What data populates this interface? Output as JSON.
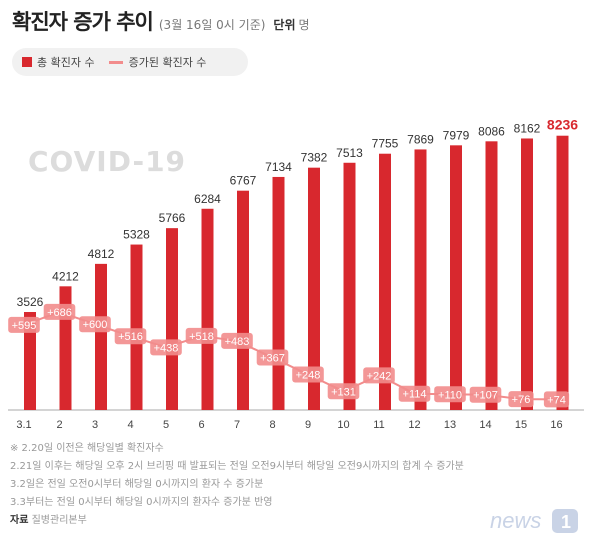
{
  "header": {
    "title": "확진자 증가 추이",
    "subtitle": "(3월 16일 0시 기준)",
    "unit_label": "단위",
    "unit_value": "명"
  },
  "legend": {
    "total": "총 확진자 수",
    "increase": "증가된 확진자 수"
  },
  "watermark": "COVID-19",
  "colors": {
    "bar": "#d8282e",
    "increase": "#f28c8c",
    "axis": "#aaaaaa"
  },
  "chart_data": {
    "type": "bar",
    "categories": [
      "3.1",
      "2",
      "3",
      "4",
      "5",
      "6",
      "7",
      "8",
      "9",
      "10",
      "11",
      "12",
      "13",
      "14",
      "15",
      "16"
    ],
    "series": [
      {
        "name": "총 확진자 수",
        "values": [
          3526,
          4212,
          4812,
          5328,
          5766,
          6284,
          6767,
          7134,
          7382,
          7513,
          7755,
          7869,
          7979,
          8086,
          8162,
          8236
        ]
      },
      {
        "name": "증가된 확진자 수",
        "values": [
          595,
          686,
          600,
          516,
          438,
          518,
          483,
          367,
          248,
          131,
          242,
          114,
          110,
          107,
          76,
          74
        ]
      }
    ],
    "value_labels": [
      "3526",
      "4212",
      "4812",
      "5328",
      "5766",
      "6284",
      "6767",
      "7134",
      "7382",
      "7513",
      "7755",
      "7869",
      "7979",
      "8086",
      "8162",
      "8236"
    ],
    "increase_labels": [
      "+595",
      "+686",
      "+600",
      "+516",
      "+438",
      "+518",
      "+483",
      "+367",
      "+248",
      "+131",
      "+242",
      "+114",
      "+110",
      "+107",
      "+76",
      "+74"
    ],
    "title": "확진자 증가 추이",
    "xlabel": "",
    "ylabel": ""
  },
  "notes": {
    "n1": "※ 2.20일 이전은 해당일별 확진자수",
    "n2": "2.21일 이후는 해당일 오후 2시 브리핑 때 발표되는 전일 오전9시부터 해당일 오전9시까지의 합계 수 증가분",
    "n3": "3.2일은 전일 오전0시부터 해당일 0시까지의 환자 수 증가분",
    "n4": "3.3부터는 전일 0시부터 해당일 0시까지의 환자수 증가분 반영",
    "source_label": "자료",
    "source_value": "질병관리본부"
  },
  "logo": {
    "text": "news",
    "number": "1"
  }
}
